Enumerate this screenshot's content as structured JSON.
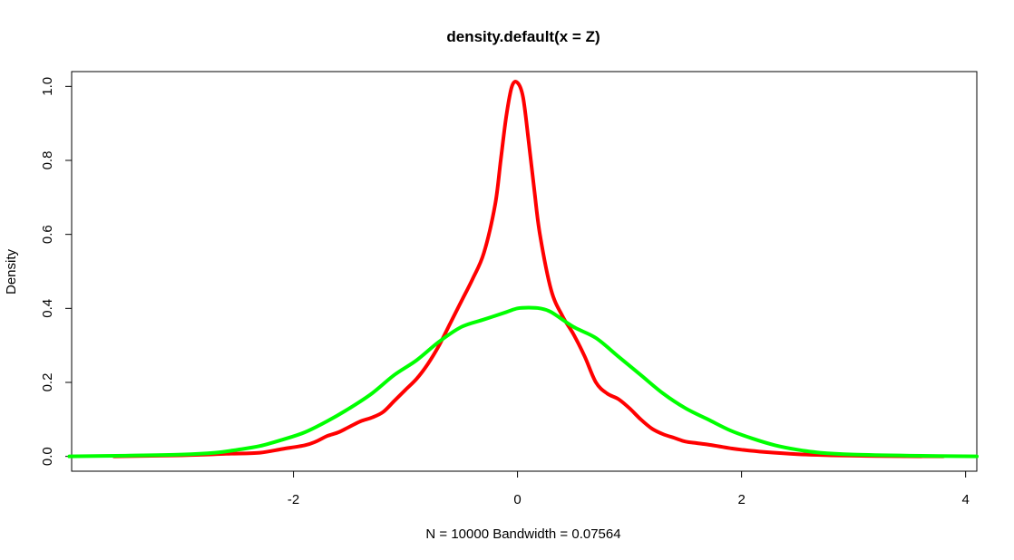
{
  "chart_data": {
    "type": "line",
    "title": "density.default(x = Z)",
    "xlabel": "N = 10000   Bandwidth = 0.07564",
    "ylabel": "Density",
    "xlim": [
      -3.98,
      4.1
    ],
    "ylim": [
      -0.04,
      1.04
    ],
    "xticks": [
      -2,
      0,
      2,
      4
    ],
    "xtick_labels": [
      "-2",
      "0",
      "2",
      "4"
    ],
    "yticks": [
      0.0,
      0.2,
      0.4,
      0.6,
      0.8,
      1.0
    ],
    "ytick_labels": [
      "0.0",
      "0.2",
      "0.4",
      "0.6",
      "0.8",
      "1.0"
    ],
    "grid": false,
    "series": [
      {
        "color": "#ff0000",
        "x": [
          -3.6,
          -3.0,
          -2.6,
          -2.3,
          -2.1,
          -1.9,
          -1.8,
          -1.7,
          -1.6,
          -1.5,
          -1.4,
          -1.3,
          -1.2,
          -1.1,
          -1.0,
          -0.9,
          -0.8,
          -0.7,
          -0.6,
          -0.5,
          -0.4,
          -0.3,
          -0.2,
          -0.15,
          -0.1,
          -0.05,
          0.0,
          0.05,
          0.1,
          0.15,
          0.2,
          0.3,
          0.4,
          0.5,
          0.6,
          0.7,
          0.8,
          0.9,
          1.0,
          1.1,
          1.2,
          1.3,
          1.4,
          1.5,
          1.6,
          1.7,
          1.8,
          1.9,
          2.0,
          2.2,
          2.5,
          2.8,
          3.2,
          3.8
        ],
        "y": [
          0.0,
          0.003,
          0.007,
          0.01,
          0.02,
          0.03,
          0.04,
          0.055,
          0.065,
          0.08,
          0.095,
          0.105,
          0.12,
          0.15,
          0.18,
          0.21,
          0.25,
          0.3,
          0.36,
          0.42,
          0.48,
          0.55,
          0.68,
          0.8,
          0.92,
          1.0,
          1.01,
          0.97,
          0.85,
          0.72,
          0.6,
          0.45,
          0.38,
          0.33,
          0.27,
          0.2,
          0.17,
          0.155,
          0.13,
          0.1,
          0.075,
          0.06,
          0.05,
          0.04,
          0.036,
          0.032,
          0.027,
          0.022,
          0.018,
          0.012,
          0.006,
          0.003,
          0.001,
          0.0
        ]
      },
      {
        "color": "#00ff00",
        "x": [
          -4.0,
          -3.5,
          -3.0,
          -2.7,
          -2.5,
          -2.3,
          -2.1,
          -1.9,
          -1.7,
          -1.5,
          -1.3,
          -1.1,
          -0.9,
          -0.7,
          -0.5,
          -0.3,
          -0.1,
          0.0,
          0.1,
          0.2,
          0.3,
          0.5,
          0.7,
          0.9,
          1.1,
          1.3,
          1.5,
          1.7,
          1.9,
          2.1,
          2.3,
          2.5,
          2.7,
          3.0,
          3.5,
          4.1
        ],
        "y": [
          0.0,
          0.002,
          0.005,
          0.01,
          0.018,
          0.028,
          0.045,
          0.065,
          0.095,
          0.13,
          0.17,
          0.22,
          0.26,
          0.31,
          0.35,
          0.37,
          0.39,
          0.4,
          0.402,
          0.4,
          0.39,
          0.35,
          0.32,
          0.27,
          0.22,
          0.17,
          0.13,
          0.1,
          0.07,
          0.048,
          0.03,
          0.018,
          0.01,
          0.005,
          0.002,
          0.0
        ]
      }
    ]
  }
}
